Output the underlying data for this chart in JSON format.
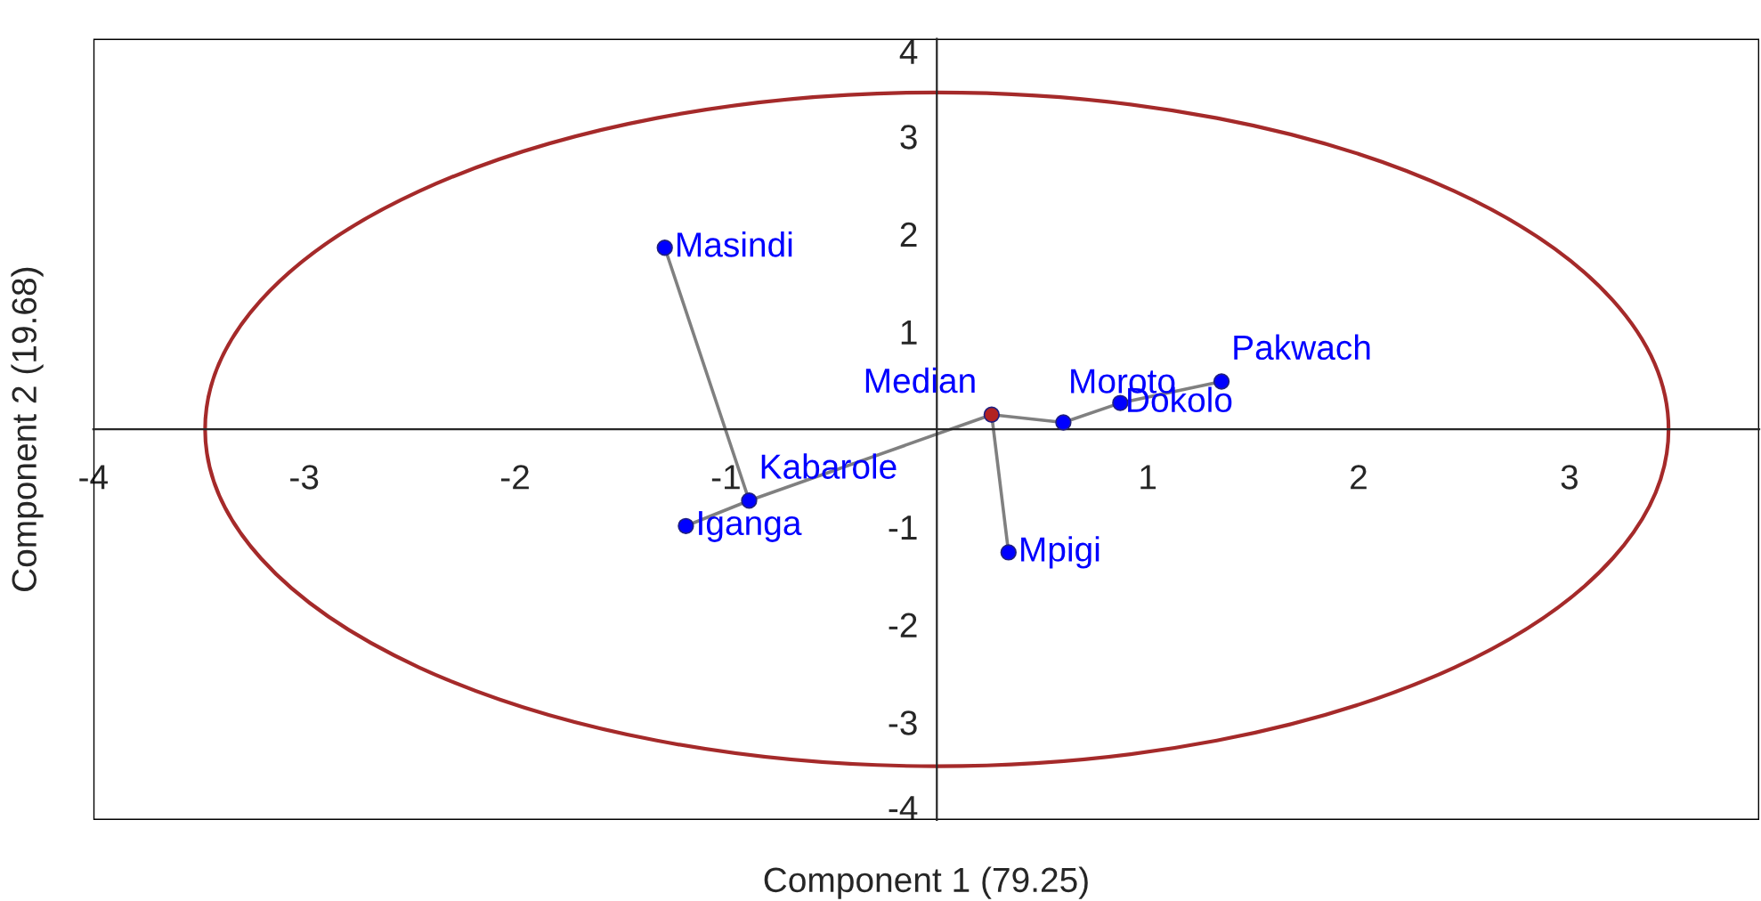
{
  "chart_data": {
    "type": "scatter",
    "xlabel": "Component 1 (79.25)",
    "ylabel": "Component 2 (19.68)",
    "xlim": [
      -4,
      3.9
    ],
    "ylim": [
      -4,
      4
    ],
    "xticks": [
      -4,
      -3,
      -2,
      -1,
      1,
      2,
      3
    ],
    "yticks": [
      -4,
      -3,
      -2,
      -1,
      1,
      2,
      3,
      4
    ],
    "grid": false,
    "legend": false,
    "series": [
      {
        "type": "line",
        "color": "#808080",
        "x": [
          -1.29,
          -0.89
        ],
        "values": [
          1.86,
          -0.73
        ]
      },
      {
        "type": "line",
        "color": "#808080",
        "x": [
          -0.89,
          -1.19
        ],
        "values": [
          -0.73,
          -0.99
        ]
      },
      {
        "type": "line",
        "color": "#808080",
        "x": [
          -0.89,
          0.26
        ],
        "values": [
          -0.73,
          0.15
        ]
      },
      {
        "type": "line",
        "color": "#808080",
        "x": [
          0.26,
          0.6
        ],
        "values": [
          0.15,
          0.07
        ]
      },
      {
        "type": "line",
        "color": "#808080",
        "x": [
          0.6,
          0.87
        ],
        "values": [
          0.07,
          0.27
        ]
      },
      {
        "type": "line",
        "color": "#808080",
        "x": [
          0.87,
          1.35
        ],
        "values": [
          0.27,
          0.49
        ]
      },
      {
        "type": "line",
        "color": "#808080",
        "x": [
          0.26,
          0.34
        ],
        "values": [
          0.15,
          -1.26
        ]
      },
      {
        "type": "scatter",
        "color": "#0000ff",
        "x": [
          -1.29,
          -0.89,
          -1.19,
          0.6,
          0.87,
          1.35,
          0.34
        ],
        "values": [
          1.86,
          -0.73,
          -0.99,
          0.07,
          0.27,
          0.49,
          -1.26
        ]
      },
      {
        "type": "scatter",
        "color": "#b22222",
        "x": [
          0.26
        ],
        "values": [
          0.15
        ]
      }
    ],
    "annotations": [
      {
        "text": "Masindi",
        "x": -1.29,
        "y": 1.86
      },
      {
        "text": "Kabarole",
        "x": -0.89,
        "y": -0.73
      },
      {
        "text": "Iganga",
        "x": -1.19,
        "y": -0.99
      },
      {
        "text": "Median",
        "x": 0.26,
        "y": 0.15
      },
      {
        "text": "Moroto",
        "x": 0.6,
        "y": 0.07
      },
      {
        "text": "Dokolo",
        "x": 0.87,
        "y": 0.27
      },
      {
        "text": "Pakwach",
        "x": 1.35,
        "y": 0.49
      },
      {
        "text": "Mpigi",
        "x": 0.34,
        "y": -1.26
      }
    ]
  }
}
